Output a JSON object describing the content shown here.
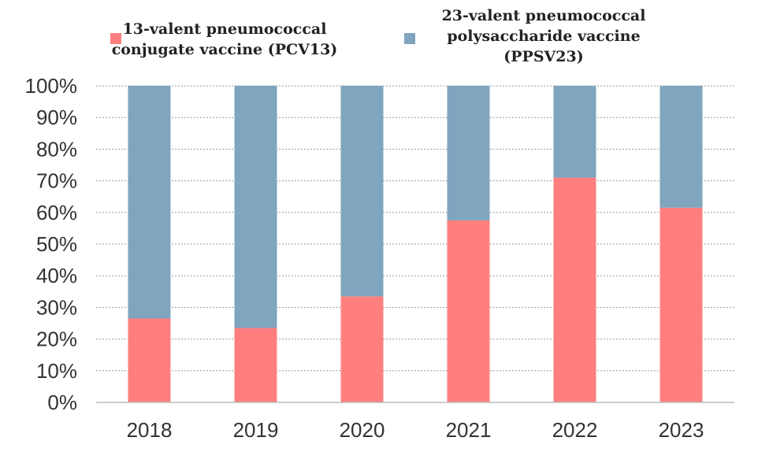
{
  "chart_data": {
    "type": "bar",
    "stacked": true,
    "categories": [
      "2018",
      "2019",
      "2020",
      "2021",
      "2022",
      "2023"
    ],
    "series": [
      {
        "name": "13-valent pneumococcal conjugate vaccine (PCV13)",
        "legend_lines": [
          "13-valent pneumococcal",
          "conjugate vaccine (PCV13)"
        ],
        "color": "#ff7f7f",
        "values": [
          26.5,
          23.5,
          33.5,
          57.5,
          71,
          61.5
        ]
      },
      {
        "name": "23-valent pneumococcal polysaccharide vaccine (PPSV23)",
        "legend_lines": [
          "23-valent pneumococcal",
          "polysaccharide vaccine",
          "(PPSV23)"
        ],
        "color": "#7fa5bf",
        "values": [
          73.5,
          76.5,
          66.5,
          42.5,
          29,
          38.5
        ]
      }
    ],
    "y_ticks": [
      "0%",
      "10%",
      "20%",
      "30%",
      "40%",
      "50%",
      "60%",
      "70%",
      "80%",
      "90%",
      "100%"
    ],
    "ylim": [
      0,
      100
    ],
    "grid": true,
    "legend_position": "top",
    "title": "",
    "xlabel": "",
    "ylabel": ""
  }
}
